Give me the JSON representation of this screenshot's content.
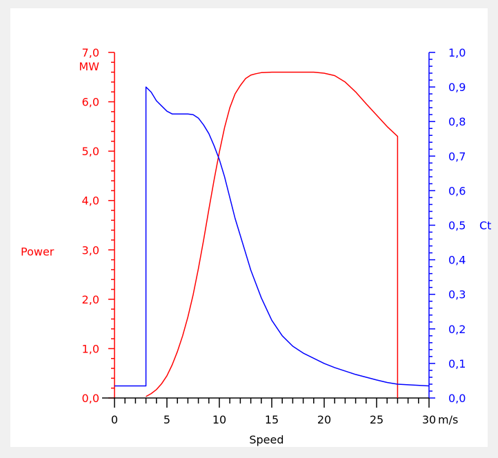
{
  "chart_data": {
    "type": "line",
    "xlabel": "Speed",
    "x_unit": "m/s",
    "xlim": [
      0,
      30
    ],
    "x_ticks": [
      "0",
      "5",
      "10",
      "15",
      "20",
      "25",
      "30"
    ],
    "y_left": {
      "label": "Power",
      "unit": "MW",
      "lim": [
        0,
        7
      ],
      "ticks": [
        "0,0",
        "1,0",
        "2,0",
        "3,0",
        "4,0",
        "5,0",
        "6,0",
        "7,0"
      ],
      "color": "#ff0000"
    },
    "y_right": {
      "label": "Ct",
      "lim": [
        0,
        1
      ],
      "ticks": [
        "0,0",
        "0,1",
        "0,2",
        "0,3",
        "0,4",
        "0,5",
        "0,6",
        "0,7",
        "0,8",
        "0,9",
        "1,0"
      ],
      "color": "#0000ff"
    },
    "grid": false,
    "series": [
      {
        "axis": "left",
        "color": "#ff0000",
        "x": [
          3,
          3.5,
          4,
          4.5,
          5,
          5.5,
          6,
          6.5,
          7,
          7.5,
          8,
          8.5,
          9,
          9.5,
          10,
          10.5,
          11,
          11.5,
          12,
          12.5,
          13,
          13.5,
          14,
          15,
          16,
          17,
          18,
          19,
          20,
          21,
          22,
          23,
          24,
          25,
          26,
          27,
          27,
          27
        ],
        "y": [
          0.03,
          0.09,
          0.17,
          0.29,
          0.45,
          0.67,
          0.94,
          1.26,
          1.64,
          2.09,
          2.62,
          3.2,
          3.82,
          4.42,
          4.98,
          5.48,
          5.88,
          6.16,
          6.33,
          6.47,
          6.54,
          6.57,
          6.59,
          6.6,
          6.6,
          6.6,
          6.6,
          6.6,
          6.58,
          6.53,
          6.4,
          6.2,
          5.96,
          5.73,
          5.5,
          5.3,
          5.25,
          0
        ]
      },
      {
        "axis": "right",
        "color": "#0000ff",
        "x": [
          0,
          3,
          3,
          3.5,
          4,
          4.5,
          5,
          5.5,
          6,
          7,
          7.5,
          8,
          8.5,
          9,
          9.5,
          10,
          10.5,
          11,
          11.5,
          12,
          13,
          14,
          15,
          16,
          17,
          18,
          19,
          20,
          21,
          22,
          23,
          24,
          25,
          26,
          27,
          30
        ],
        "y": [
          0.035,
          0.035,
          0.9,
          0.885,
          0.86,
          0.845,
          0.83,
          0.822,
          0.822,
          0.822,
          0.82,
          0.81,
          0.79,
          0.765,
          0.73,
          0.69,
          0.64,
          0.58,
          0.52,
          0.47,
          0.37,
          0.29,
          0.225,
          0.18,
          0.15,
          0.13,
          0.115,
          0.1,
          0.088,
          0.078,
          0.068,
          0.06,
          0.052,
          0.045,
          0.04,
          0.035
        ]
      }
    ]
  }
}
